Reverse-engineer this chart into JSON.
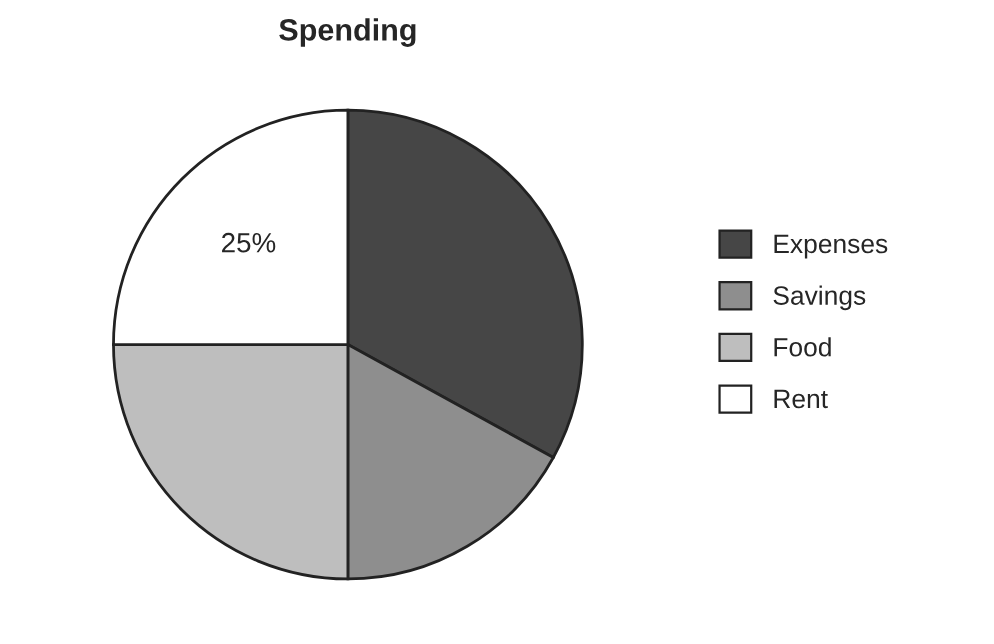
{
  "chart_data": {
    "type": "pie",
    "title": "Spending",
    "categories": [
      "Expenses",
      "Savings",
      "Food",
      "Rent"
    ],
    "values": [
      33,
      17,
      25,
      25
    ],
    "colors": [
      "#464646",
      "#8e8e8e",
      "#bebebe",
      "#ffffff"
    ],
    "value_labels": [
      null,
      null,
      null,
      "25%"
    ],
    "legend": "right"
  }
}
